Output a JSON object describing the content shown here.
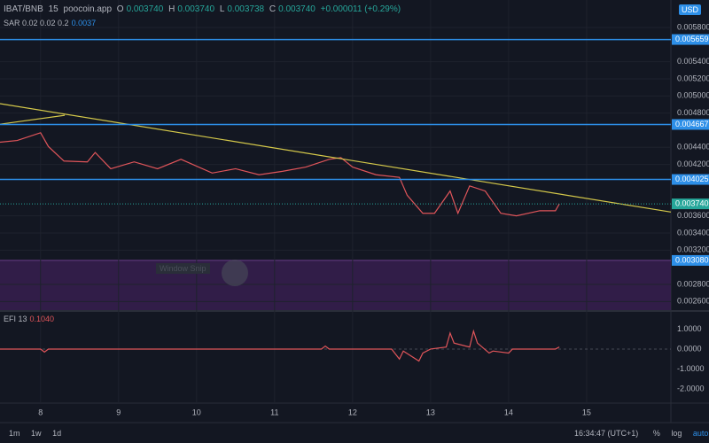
{
  "legend": {
    "symbol": "IBAT/BNB",
    "interval": "15",
    "source": "poocoin.app",
    "o": "O",
    "o_value": "0.003740",
    "h": "H",
    "h_value": "0.003740",
    "l": "L",
    "l_value": "0.003738",
    "c": "C",
    "c_value": "0.003740",
    "change": "+0.000011 (+0.29%)",
    "sar": "SAR 0.02 0.02 0.2",
    "sar_value": "0.0037",
    "efi": "EFI 13",
    "efi_value": "0.1040"
  },
  "currency": "USD",
  "watermark": "Window Snip",
  "toolbar": {
    "ranges": [
      "1m",
      "1w",
      "1d"
    ],
    "clock": "16:34:47 (UTC+1)",
    "percent": "%",
    "log": "log",
    "auto": "auto"
  },
  "chart_data": [
    {
      "type": "line",
      "xlim": [
        7.48,
        16.08
      ],
      "xticks": [
        8,
        9,
        10,
        11,
        12,
        13,
        14,
        15
      ],
      "ylim": [
        0.0025,
        0.00612
      ],
      "yticks": [
        {
          "value": 0.0058,
          "label": "0.005800"
        },
        {
          "value": 0.0054,
          "label": "0.005400"
        },
        {
          "value": 0.0052,
          "label": "0.005200"
        },
        {
          "value": 0.005,
          "label": "0.005000"
        },
        {
          "value": 0.0048,
          "label": "0.004800"
        },
        {
          "value": 0.0044,
          "label": "0.004400"
        },
        {
          "value": 0.0042,
          "label": "0.004200"
        },
        {
          "value": 0.0036,
          "label": "0.003600"
        },
        {
          "value": 0.0034,
          "label": "0.003400"
        },
        {
          "value": 0.0032,
          "label": "0.003200"
        },
        {
          "value": 0.0028,
          "label": "0.002800"
        },
        {
          "value": 0.0026,
          "label": "0.002600"
        }
      ],
      "grid": true,
      "series": [
        {
          "color": "#e0555a",
          "x": [
            7.48,
            7.7,
            8.0,
            8.1,
            8.3,
            8.6,
            8.7,
            8.9,
            9.2,
            9.5,
            9.8,
            10.2,
            10.5,
            10.8,
            11.1,
            11.4,
            11.7,
            11.85,
            12.0,
            12.3,
            12.6,
            12.7,
            12.9,
            13.05,
            13.25,
            13.35,
            13.5,
            13.7,
            13.9,
            14.1,
            14.4,
            14.6,
            14.65
          ],
          "values": [
            0.00446,
            0.00448,
            0.00457,
            0.00441,
            0.00424,
            0.00423,
            0.00434,
            0.00415,
            0.00423,
            0.00415,
            0.00426,
            0.0041,
            0.00415,
            0.00408,
            0.00412,
            0.00417,
            0.00426,
            0.00428,
            0.00417,
            0.00408,
            0.00405,
            0.00384,
            0.00363,
            0.00363,
            0.00389,
            0.00363,
            0.00395,
            0.00389,
            0.00363,
            0.0036,
            0.00366,
            0.00366,
            0.00374
          ]
        },
        {
          "color": "#d4c84a",
          "x": [
            7.48,
            16.08
          ],
          "values": [
            0.00491,
            0.003645
          ]
        },
        {
          "color": "#d4c84a",
          "x": [
            7.48,
            8.31
          ],
          "values": [
            0.00467,
            0.004774
          ]
        }
      ],
      "levels": [
        {
          "value": 0.005659,
          "label": "0.005659"
        },
        {
          "value": 0.004667,
          "label": "0.004667"
        },
        {
          "value": 0.004025,
          "label": "0.004025"
        }
      ],
      "level_color": "#2d8fe8",
      "last_price": {
        "value": 0.00374,
        "label": "0.003740"
      },
      "zone": {
        "value": 0.00308,
        "label": "0.003080",
        "color": "#3a1f52"
      }
    },
    {
      "type": "line",
      "xlim": [
        7.48,
        16.08
      ],
      "ylim": [
        -2.71,
        1.73
      ],
      "yticks": [
        {
          "value": 1,
          "label": "1.0000"
        },
        {
          "value": 0,
          "label": "0.0000"
        },
        {
          "value": -1,
          "label": "-1.0000"
        },
        {
          "value": -2,
          "label": "-2.0000"
        }
      ],
      "series": [
        {
          "color": "#e0555a",
          "x": [
            7.48,
            8.0,
            8.05,
            8.1,
            9.0,
            10.0,
            11.0,
            11.6,
            11.65,
            11.7,
            12.0,
            12.5,
            12.6,
            12.65,
            12.85,
            12.9,
            13.0,
            13.2,
            13.25,
            13.3,
            13.5,
            13.55,
            13.6,
            13.75,
            13.8,
            14.0,
            14.05,
            14.6,
            14.65
          ],
          "values": [
            0,
            0,
            -0.15,
            0,
            0,
            0,
            0,
            0,
            0.15,
            0,
            0,
            0,
            -0.5,
            -0.1,
            -0.6,
            -0.2,
            0,
            0.1,
            0.8,
            0.3,
            0.1,
            0.9,
            0.3,
            -0.2,
            -0.1,
            -0.2,
            0,
            0,
            0.104
          ]
        }
      ]
    }
  ]
}
